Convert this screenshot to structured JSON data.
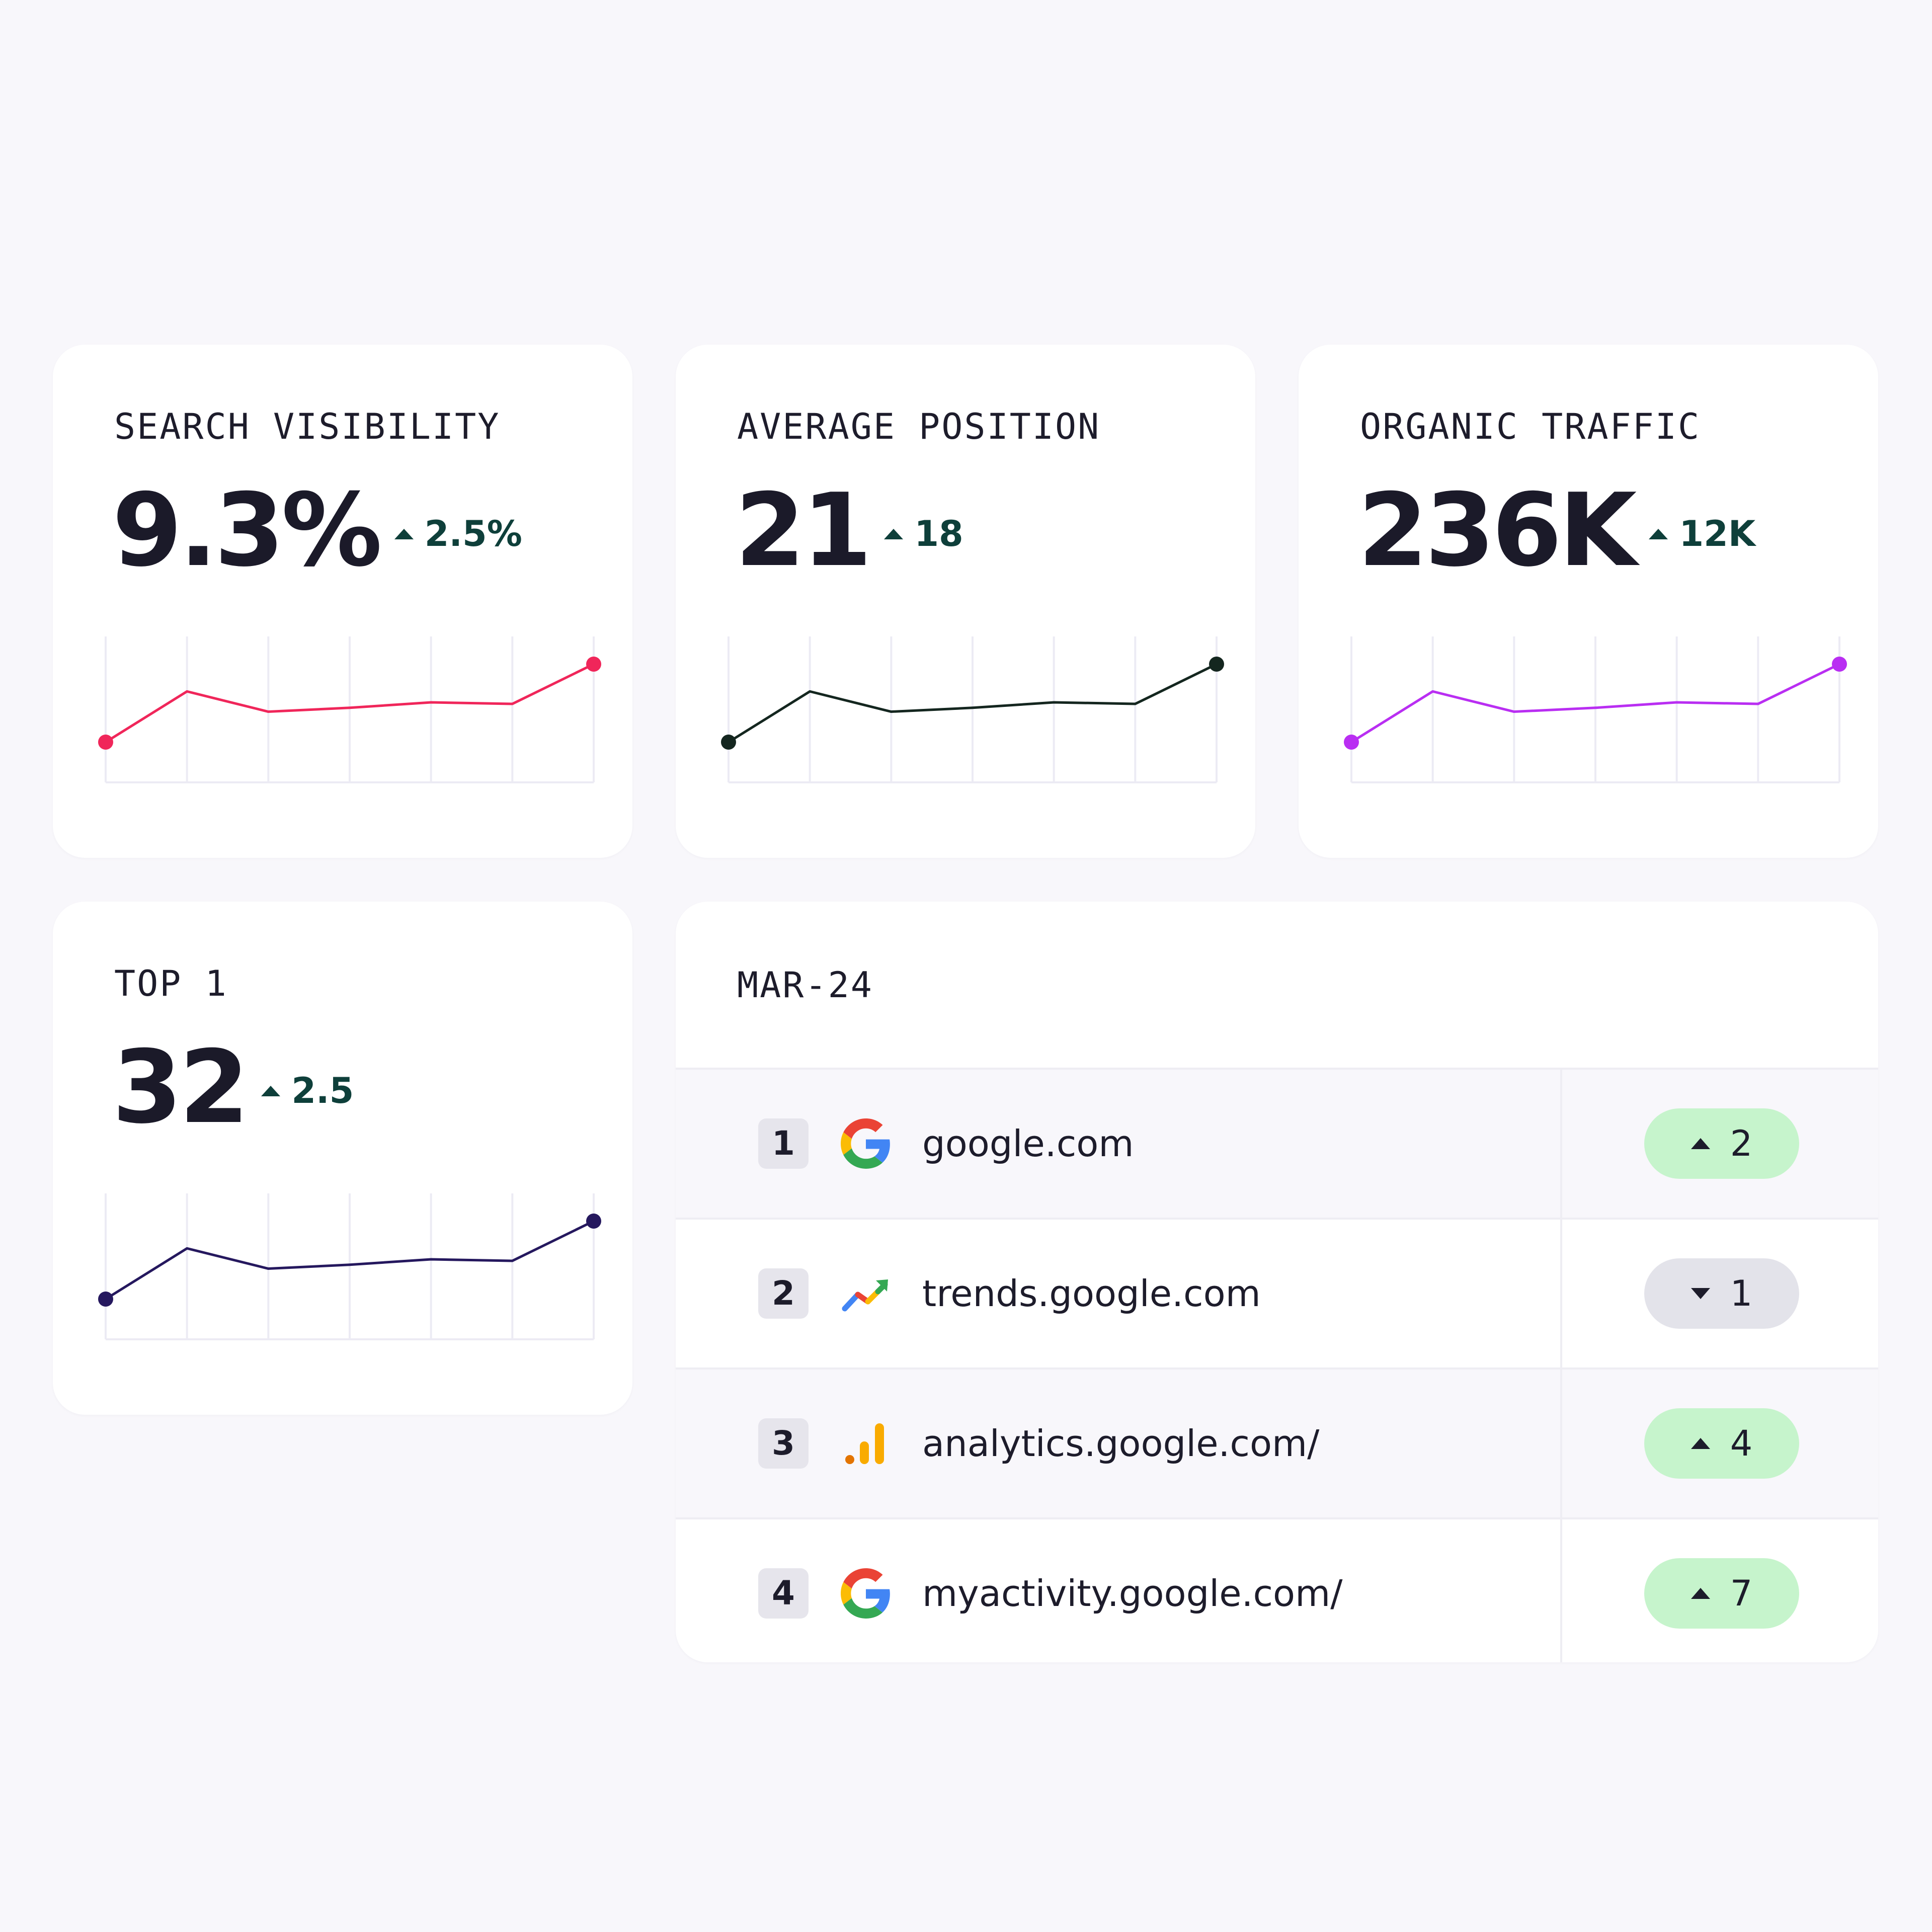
{
  "metrics": [
    {
      "id": "visibility",
      "label": "SEARCH VISIBILITY",
      "value": "9.3%",
      "delta": "2.5%",
      "color": "#f0265a"
    },
    {
      "id": "position",
      "label": "AVERAGE POSITION",
      "value": "21",
      "delta": "18",
      "color": "#14261f"
    },
    {
      "id": "traffic",
      "label": "ORGANIC TRAFFIC",
      "value": "236K",
      "delta": "12K",
      "color": "#b92ef2"
    },
    {
      "id": "top1",
      "label": "TOP 1",
      "value": "32",
      "delta": "2.5",
      "color": "#25185e"
    }
  ],
  "chart_data": [
    {
      "type": "line",
      "series": [
        {
          "values": [
            0,
            0.65,
            0.39,
            0.44,
            0.51,
            0.49,
            1.0
          ]
        }
      ],
      "grid": true
    },
    {
      "type": "line",
      "series": [
        {
          "values": [
            0,
            0.65,
            0.39,
            0.44,
            0.51,
            0.49,
            1.0
          ]
        }
      ],
      "grid": true
    },
    {
      "type": "line",
      "series": [
        {
          "values": [
            0,
            0.65,
            0.39,
            0.44,
            0.51,
            0.49,
            1.0
          ]
        }
      ],
      "grid": true
    },
    {
      "type": "line",
      "series": [
        {
          "values": [
            0,
            0.65,
            0.39,
            0.44,
            0.51,
            0.49,
            1.0
          ]
        }
      ],
      "grid": true
    }
  ],
  "ranking": {
    "title": "MAR-24",
    "rows": [
      {
        "rank": "1",
        "icon": "google-g-icon",
        "domain": "google.com",
        "direction": "up",
        "change": "2"
      },
      {
        "rank": "2",
        "icon": "google-trends-icon",
        "domain": "trends.google.com",
        "direction": "down",
        "change": "1"
      },
      {
        "rank": "3",
        "icon": "google-analytics-icon",
        "domain": "analytics.google.com/",
        "direction": "up",
        "change": "4"
      },
      {
        "rank": "4",
        "icon": "google-g-icon",
        "domain": "myactivity.google.com/",
        "direction": "up",
        "change": "7"
      }
    ]
  }
}
